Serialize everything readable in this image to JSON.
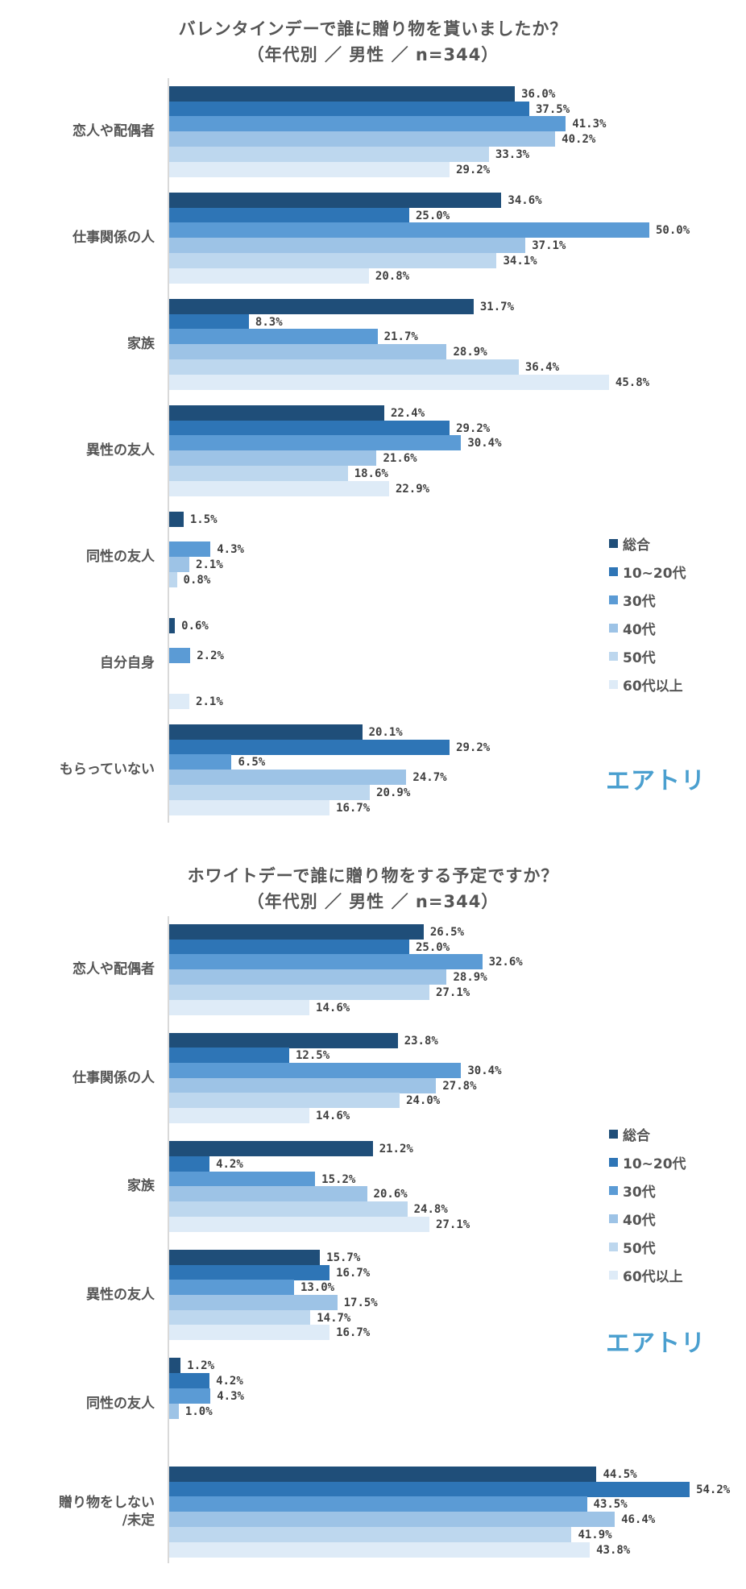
{
  "colors": [
    "#1f4e79",
    "#2e75b6",
    "#5b9bd5",
    "#9dc3e6",
    "#bdd7ee",
    "#deebf7"
  ],
  "logo": "エアトリ",
  "chart_data": [
    {
      "type": "bar",
      "orientation": "horizontal",
      "title": "バレンタインデーで誰に贈り物を貰いましたか？",
      "subtitle": "（年代別 ／ 男性 ／  n=344）",
      "xlabel": "",
      "ylabel": "",
      "xlim": [
        0,
        60
      ],
      "grid": false,
      "legend_position": "right",
      "categories": [
        "恋人や配偶者",
        "仕事関係の人",
        "家族",
        "異性の友人",
        "同性の友人",
        "自分自身",
        "もらっていない"
      ],
      "series": [
        {
          "name": "総合",
          "values": [
            36.0,
            34.6,
            31.7,
            22.4,
            1.5,
            0.6,
            20.1
          ]
        },
        {
          "name": "10~20代",
          "values": [
            37.5,
            25.0,
            8.3,
            29.2,
            null,
            null,
            29.2
          ]
        },
        {
          "name": "30代",
          "values": [
            41.3,
            50.0,
            21.7,
            30.4,
            4.3,
            2.2,
            6.5
          ]
        },
        {
          "name": "40代",
          "values": [
            40.2,
            37.1,
            28.9,
            21.6,
            2.1,
            null,
            24.7
          ]
        },
        {
          "name": "50代",
          "values": [
            33.3,
            34.1,
            36.4,
            18.6,
            0.8,
            null,
            20.9
          ]
        },
        {
          "name": "60代以上",
          "values": [
            29.2,
            20.8,
            45.8,
            22.9,
            null,
            2.1,
            16.7
          ]
        }
      ]
    },
    {
      "type": "bar",
      "orientation": "horizontal",
      "title": "ホワイトデーで誰に贈り物をする予定ですか？",
      "subtitle": "（年代別 ／ 男性 ／  n=344）",
      "xlabel": "",
      "ylabel": "",
      "xlim": [
        0,
        60
      ],
      "grid": false,
      "legend_position": "right",
      "categories": [
        "恋人や配偶者",
        "仕事関係の人",
        "家族",
        "異性の友人",
        "同性の友人",
        "贈り物をしない\n/未定"
      ],
      "series": [
        {
          "name": "総合",
          "values": [
            26.5,
            23.8,
            21.2,
            15.7,
            1.2,
            44.5
          ]
        },
        {
          "name": "10~20代",
          "values": [
            25.0,
            12.5,
            4.2,
            16.7,
            4.2,
            54.2
          ]
        },
        {
          "name": "30代",
          "values": [
            32.6,
            30.4,
            15.2,
            13.0,
            4.3,
            43.5
          ]
        },
        {
          "name": "40代",
          "values": [
            28.9,
            27.8,
            20.6,
            17.5,
            1.0,
            46.4
          ]
        },
        {
          "name": "50代",
          "values": [
            27.1,
            24.0,
            24.8,
            14.7,
            null,
            41.9
          ]
        },
        {
          "name": "60代以上",
          "values": [
            14.6,
            14.6,
            27.1,
            16.7,
            null,
            43.8
          ]
        }
      ]
    }
  ]
}
